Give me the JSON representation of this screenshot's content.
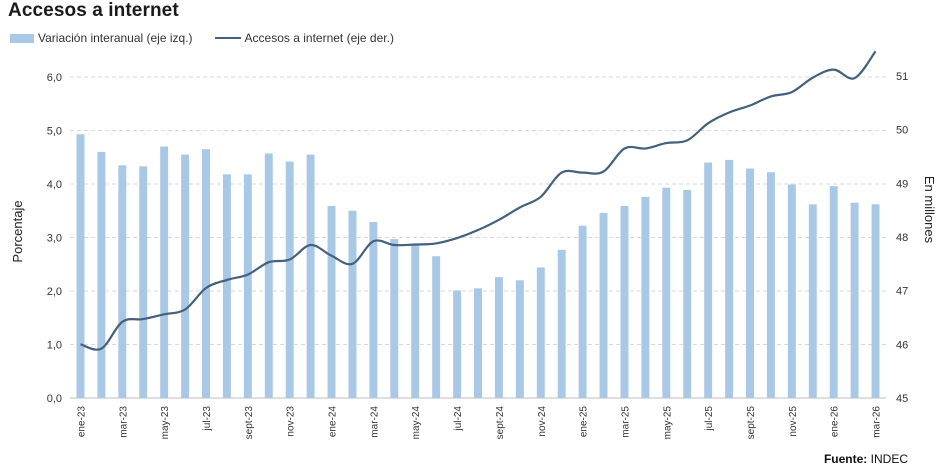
{
  "title": "Accesos a internet",
  "legend": {
    "bar_label": "Variación interanual (eje izq.)",
    "line_label": "Accesos a internet (eje der.)"
  },
  "source": {
    "prefix": "Fuente:",
    "name": "INDEC"
  },
  "colors": {
    "bar": "#a9c8e6",
    "line": "#44607c",
    "grid": "#d9d9d9"
  },
  "chart_data": {
    "type": "bar",
    "categories": [
      "ene-23",
      "feb-23",
      "mar-23",
      "abr-23",
      "may-23",
      "jun-23",
      "jul-23",
      "ago-23",
      "sept-23",
      "oct-23",
      "nov-23",
      "dic-23",
      "ene-24",
      "feb-24",
      "mar-24",
      "abr-24",
      "may-24",
      "jun-24",
      "jul-24",
      "ago-24",
      "sept-24",
      "oct-24",
      "nov-24",
      "dic-24",
      "ene-25",
      "feb-25",
      "mar-25",
      "abr-25",
      "may-25",
      "jun-25",
      "jul-25",
      "ago-25",
      "sept-25",
      "oct-25",
      "nov-25",
      "dic-25",
      "ene-26",
      "feb-26",
      "mar-26"
    ],
    "x_tick_labels": [
      "ene-23",
      "",
      "mar-23",
      "",
      "may-23",
      "",
      "jul-23",
      "",
      "sept-23",
      "",
      "nov-23",
      "",
      "ene-24",
      "",
      "mar-24",
      "",
      "may-24",
      "",
      "jul-24",
      "",
      "sept-24",
      "",
      "nov-24",
      "",
      "ene-25",
      "",
      "mar-25",
      "",
      "may-25",
      "",
      "jul-25",
      "",
      "sept-25",
      "",
      "nov-25",
      "",
      "ene-26",
      "",
      "mar-26"
    ],
    "series": [
      {
        "name": "Variación interanual (eje izq.)",
        "type": "bar",
        "axis": "left",
        "values": [
          4.93,
          4.6,
          4.35,
          4.33,
          4.7,
          4.55,
          4.65,
          4.18,
          4.18,
          4.57,
          4.42,
          4.55,
          3.59,
          3.5,
          3.29,
          2.97,
          2.86,
          2.65,
          2.01,
          2.05,
          2.26,
          2.2,
          2.44,
          2.77,
          3.22,
          3.46,
          3.59,
          3.76,
          3.93,
          3.89,
          4.4,
          4.45,
          4.29,
          4.22,
          3.99,
          3.62,
          3.96,
          3.65,
          3.62
        ]
      },
      {
        "name": "Accesos a internet (eje der.)",
        "type": "line",
        "axis": "right",
        "values": [
          46.0,
          45.92,
          46.42,
          46.47,
          46.56,
          46.65,
          47.05,
          47.2,
          47.3,
          47.53,
          47.58,
          47.85,
          47.65,
          47.5,
          47.92,
          47.85,
          47.86,
          47.88,
          47.98,
          48.13,
          48.32,
          48.55,
          48.75,
          49.2,
          49.2,
          49.22,
          49.65,
          49.65,
          49.75,
          49.8,
          50.12,
          50.32,
          50.45,
          50.62,
          50.7,
          50.97,
          51.12,
          50.96,
          51.46
        ]
      }
    ],
    "ylabel": "Porcentaje",
    "ylabel_right": "En millones",
    "ylim": [
      0,
      6
    ],
    "ylim_right": [
      45,
      51.5
    ],
    "yticks": [
      "0,0",
      "1,0",
      "2,0",
      "3,0",
      "4,0",
      "5,0",
      "6,0"
    ],
    "yticks_right": [
      "45",
      "46",
      "47",
      "48",
      "49",
      "50",
      "51"
    ],
    "grid": true,
    "legend_position": "top-left"
  }
}
